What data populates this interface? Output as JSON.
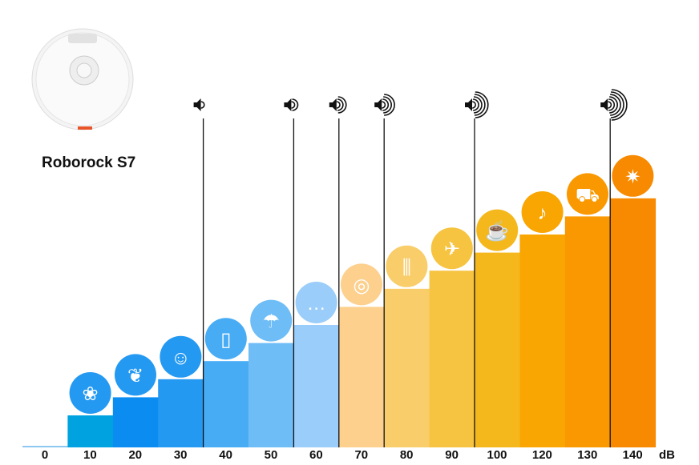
{
  "product": {
    "name": "Roborock S7"
  },
  "chart_data": {
    "type": "bar",
    "categories": [
      "0",
      "10",
      "20",
      "30",
      "40",
      "50",
      "60",
      "70",
      "80",
      "90",
      "100",
      "120",
      "130",
      "140"
    ],
    "values": [
      0,
      10,
      20,
      30,
      40,
      50,
      60,
      70,
      80,
      90,
      100,
      120,
      130,
      140
    ],
    "unit_label": "dB",
    "colors": [
      "#8ec8f0",
      "#00a3e0",
      "#0a8cf0",
      "#2499f2",
      "#48acf5",
      "#6ebdf7",
      "#9acdfa",
      "#fdd08e",
      "#f8cd6a",
      "#f7c441",
      "#f5b81c",
      "#f9a602",
      "#f99800",
      "#f78a00"
    ],
    "icons": [
      "",
      "lungs-icon",
      "leaves-icon",
      "whisper-icon",
      "fridge-icon",
      "rain-icon",
      "conversation-icon",
      "washing-machine-icon",
      "piano-icon",
      "hair-dryer-icon",
      "coffee-machine-icon",
      "trombone-icon",
      "police-car-icon",
      "fireworks-icon"
    ],
    "loudness_markers": [
      {
        "after": "30",
        "waves": 1
      },
      {
        "after": "50",
        "waves": 2
      },
      {
        "after": "60",
        "waves": 3
      },
      {
        "after": "70",
        "waves": 4
      },
      {
        "after": "90",
        "waves": 5
      },
      {
        "after": "130",
        "waves": 6
      }
    ],
    "grid": false
  }
}
